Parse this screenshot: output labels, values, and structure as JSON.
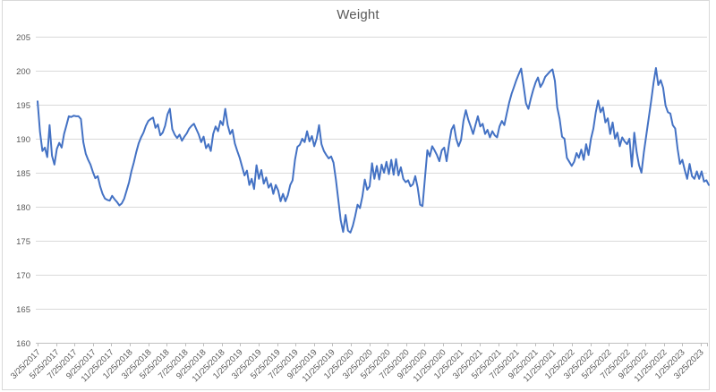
{
  "chart_data": {
    "type": "line",
    "title": "Weight",
    "xlabel": "",
    "ylabel": "",
    "ylim": [
      160,
      205
    ],
    "ytick_step": 5,
    "y_tick_labels": [
      "160",
      "165",
      "170",
      "175",
      "180",
      "185",
      "190",
      "195",
      "200",
      "205"
    ],
    "x_tick_labels": [
      "3/25/2017",
      "5/25/2017",
      "7/25/2017",
      "9/25/2017",
      "11/25/2017",
      "1/25/2018",
      "3/25/2018",
      "5/25/2018",
      "7/25/2018",
      "9/25/2018",
      "11/25/2018",
      "1/25/2019",
      "3/25/2019",
      "5/25/2019",
      "7/25/2019",
      "9/25/2019",
      "11/25/2019",
      "1/25/2020",
      "3/25/2020",
      "5/25/2020",
      "7/25/2020",
      "9/25/2020",
      "11/25/2020",
      "1/25/2021",
      "3/25/2021",
      "5/25/2021",
      "7/25/2021",
      "9/25/2021",
      "11/25/2021",
      "1/25/2022",
      "3/25/2022",
      "5/25/2022",
      "7/25/2022",
      "9/25/2022",
      "11/25/2022",
      "1/25/2023",
      "3/25/2023"
    ],
    "grid": true,
    "legend_position": "none",
    "series": [
      {
        "name": "Weight",
        "color": "#4472C4",
        "values": [
          195.5,
          191.0,
          188.2,
          188.7,
          187.3,
          192.0,
          187.5,
          186.2,
          188.5,
          189.4,
          188.7,
          190.7,
          192.0,
          193.3,
          193.2,
          193.4,
          193.3,
          193.3,
          192.9,
          189.5,
          187.8,
          186.9,
          186.2,
          185.1,
          184.2,
          184.5,
          183.0,
          181.9,
          181.2,
          181.0,
          180.9,
          181.6,
          181.1,
          180.7,
          180.2,
          180.5,
          181.2,
          182.4,
          183.6,
          185.2,
          186.5,
          188.0,
          189.3,
          190.2,
          190.9,
          191.9,
          192.6,
          192.9,
          193.1,
          191.6,
          192.1,
          190.5,
          190.9,
          191.9,
          193.6,
          194.4,
          191.4,
          190.6,
          190.1,
          190.6,
          189.7,
          190.3,
          190.8,
          191.5,
          191.9,
          192.2,
          191.4,
          190.6,
          189.5,
          190.3,
          188.6,
          189.2,
          188.2,
          190.7,
          191.8,
          191.1,
          192.6,
          192.0,
          194.4,
          192.0,
          190.7,
          191.3,
          189.3,
          188.2,
          187.2,
          185.9,
          184.6,
          185.3,
          183.2,
          184.1,
          182.6,
          186.1,
          184.1,
          185.4,
          183.4,
          184.3,
          182.8,
          183.4,
          181.9,
          183.2,
          182.4,
          180.8,
          181.9,
          180.8,
          181.7,
          183.2,
          183.9,
          186.9,
          188.8,
          189.1,
          190.0,
          189.5,
          191.1,
          189.6,
          190.4,
          188.9,
          190.0,
          192.0,
          189.2,
          188.2,
          187.6,
          187.1,
          187.4,
          186.5,
          184.0,
          181.0,
          178.0,
          176.3,
          178.8,
          176.5,
          176.2,
          177.2,
          178.6,
          180.3,
          179.8,
          181.5,
          184.0,
          182.5,
          183.0,
          186.4,
          184.1,
          186.0,
          184.0,
          186.2,
          185.0,
          186.6,
          184.8,
          186.9,
          184.7,
          187.0,
          184.6,
          185.8,
          184.1,
          183.6,
          183.9,
          183.0,
          183.3,
          184.5,
          182.8,
          180.3,
          180.1,
          184.2,
          188.3,
          187.4,
          188.9,
          188.3,
          187.6,
          186.7,
          188.3,
          188.7,
          186.7,
          189.2,
          191.3,
          192.0,
          190.0,
          188.9,
          189.8,
          192.6,
          194.2,
          192.8,
          191.8,
          190.7,
          192.0,
          193.3,
          191.8,
          192.2,
          190.7,
          191.3,
          190.2,
          191.1,
          190.5,
          190.2,
          191.8,
          192.6,
          192.0,
          193.7,
          195.3,
          196.6,
          197.6,
          198.6,
          199.5,
          200.3,
          197.8,
          195.2,
          194.4,
          195.9,
          197.2,
          198.3,
          199.0,
          197.6,
          198.2,
          199.1,
          199.5,
          199.9,
          200.2,
          198.5,
          194.6,
          192.9,
          190.3,
          190.0,
          187.2,
          186.6,
          186.0,
          186.6,
          187.9,
          187.2,
          188.4,
          186.9,
          189.2,
          187.6,
          190.0,
          191.5,
          193.9,
          195.6,
          193.9,
          194.6,
          192.4,
          193.0,
          190.7,
          192.4,
          190.0,
          190.9,
          188.9,
          190.2,
          189.6,
          189.2,
          190.0,
          185.9,
          190.9,
          188.0,
          186.1,
          185.0,
          188.0,
          190.5,
          193.0,
          195.5,
          198.2,
          200.4,
          197.9,
          198.6,
          197.5,
          194.9,
          193.9,
          193.7,
          192.0,
          191.5,
          188.5,
          186.3,
          186.9,
          185.4,
          184.1,
          186.3,
          184.5,
          184.1,
          185.2,
          184.1,
          185.2,
          183.7,
          183.9,
          183.2
        ]
      }
    ],
    "colors": {
      "line": "#4472C4",
      "gridline": "#D9D9D9",
      "axis_line": "#BFBFBF",
      "tick_text": "#595959",
      "title_text": "#595959",
      "background": "#FFFFFF",
      "border": "#D9D9D9"
    }
  }
}
